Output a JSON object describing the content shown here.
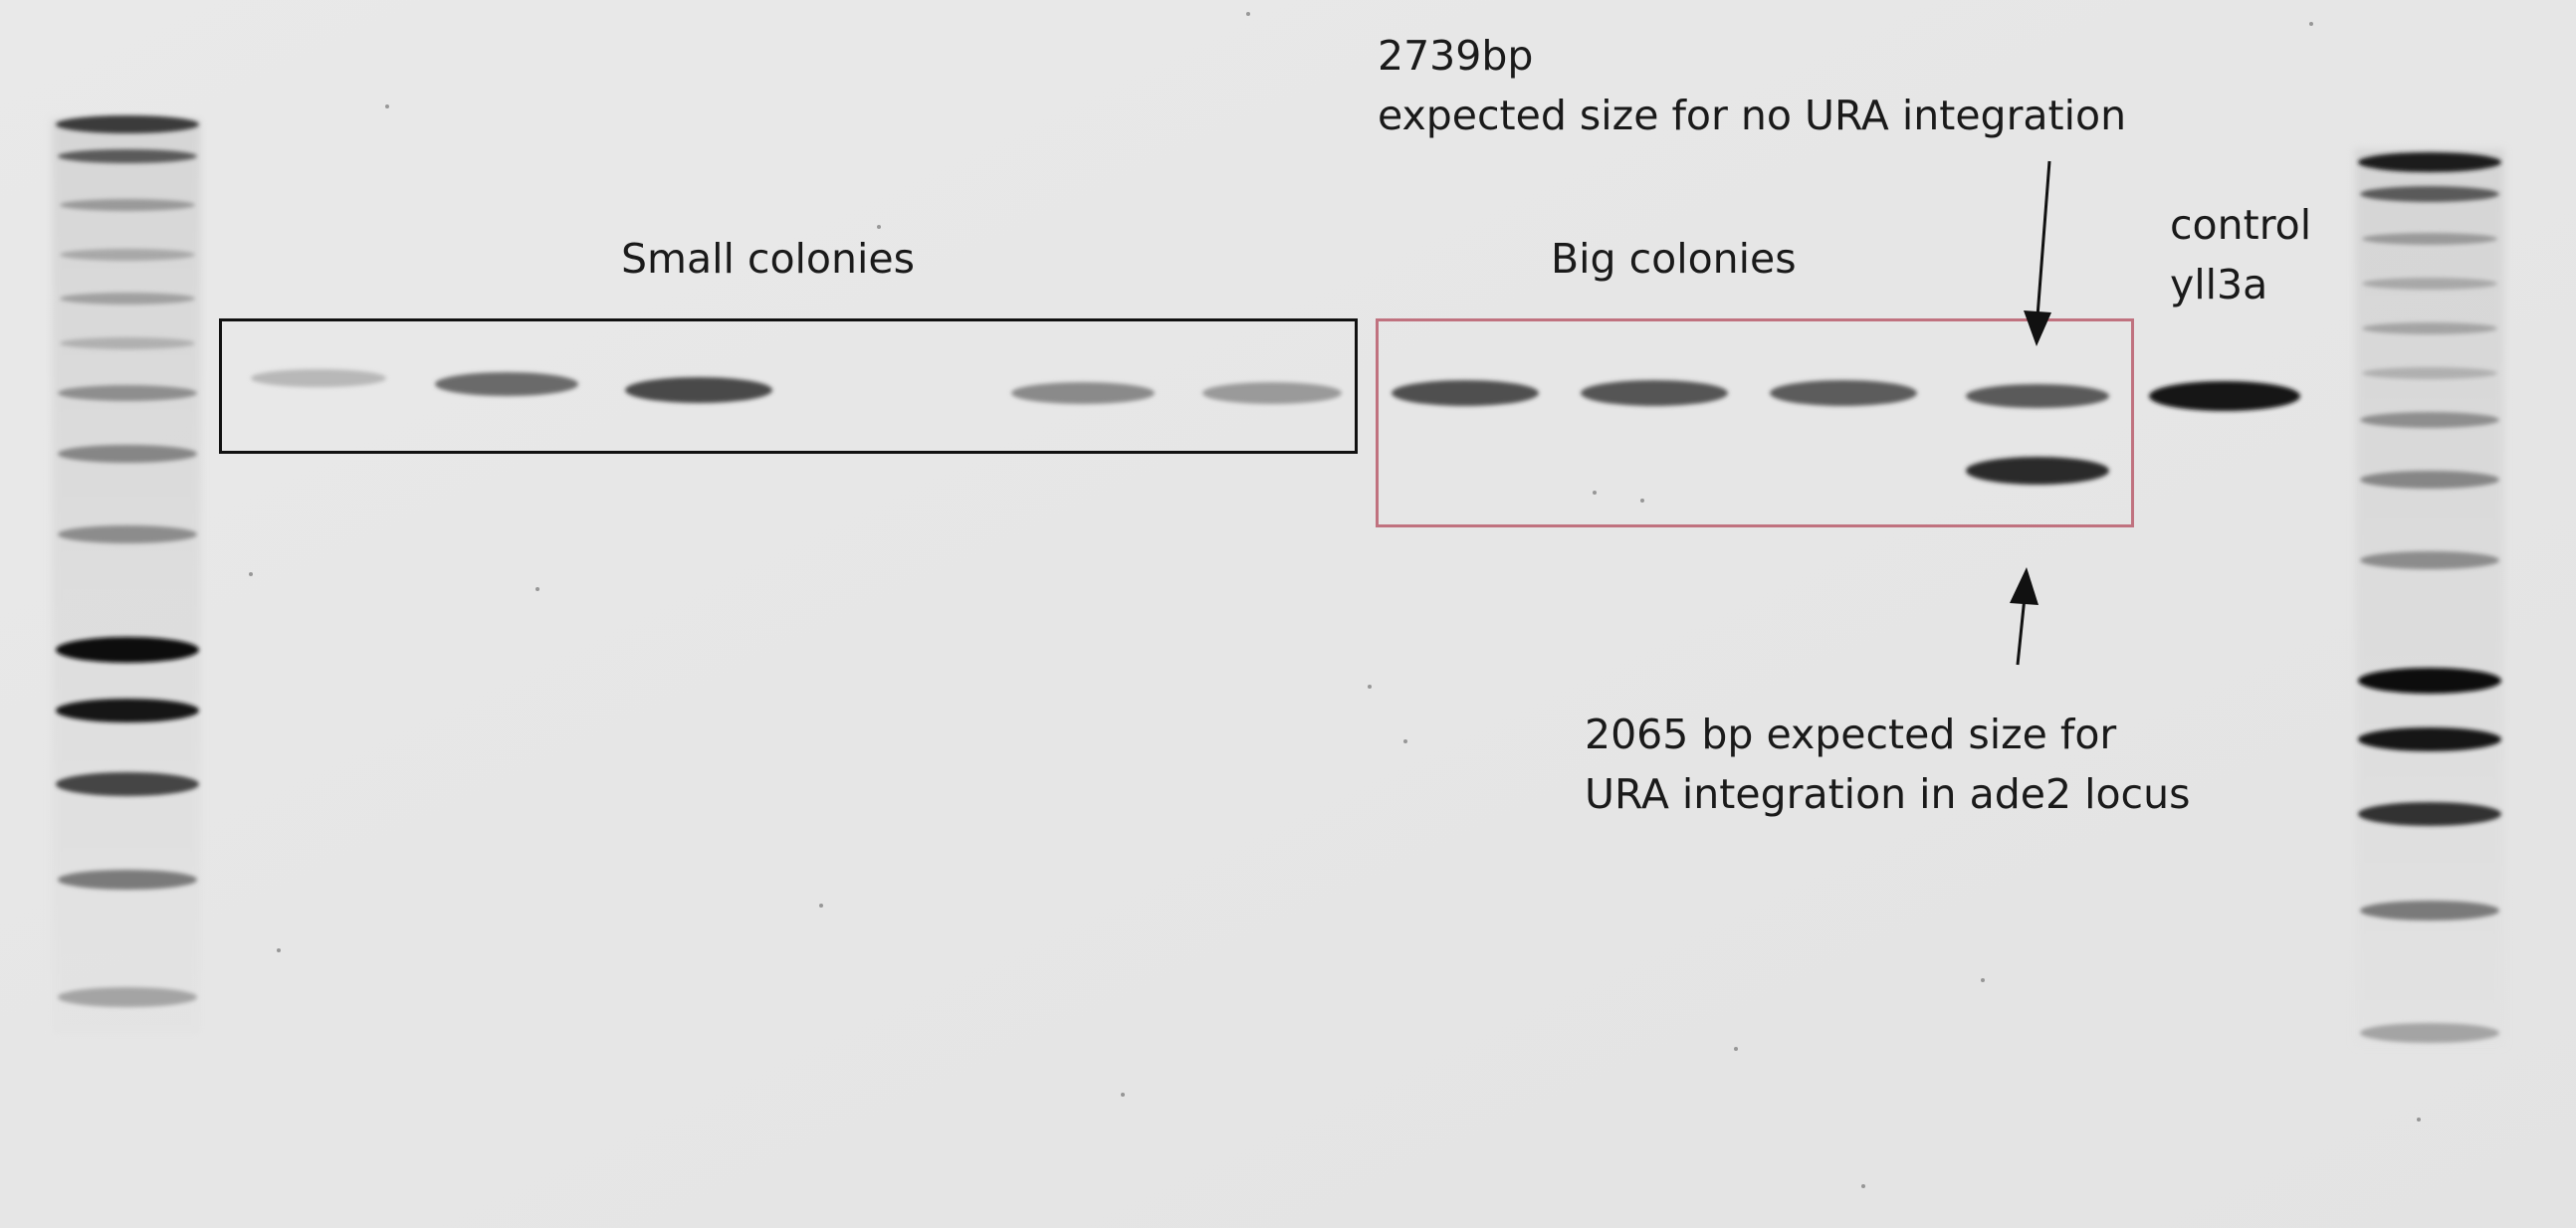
{
  "labels": {
    "small_colonies": "Small colonies",
    "big_colonies": "Big colonies",
    "control_line1": "control",
    "control_line2": "yll3a",
    "top_size": "2739bp",
    "top_desc": "expected size for no  URA integration",
    "bottom_line1": "2065 bp expected size for",
    "bottom_line2": "URA integration in ade2 locus"
  },
  "colors": {
    "gel_background": "#e6e6e6",
    "small_box": "#111111",
    "big_box": "#c0727f",
    "text": "#1a1a1a"
  }
}
